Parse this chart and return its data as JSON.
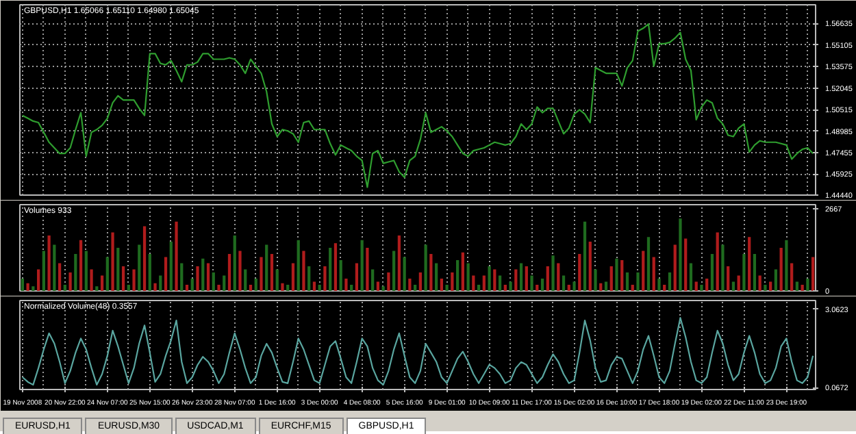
{
  "chart_data": [
    {
      "type": "line",
      "title": "GBPUSD,H1  1.65066 1.65110 1.64980 1.65045",
      "grid": true,
      "categories": [
        null,
        null,
        null,
        null,
        null,
        null,
        null,
        null,
        null,
        null,
        null,
        null,
        null,
        null,
        null,
        null,
        null,
        null,
        null,
        null,
        null,
        null,
        null,
        null,
        null,
        null,
        null,
        null,
        null,
        null,
        null,
        null,
        null,
        null,
        null,
        null,
        null,
        null,
        null,
        null,
        null,
        null,
        null,
        null,
        null,
        null,
        null,
        null,
        null,
        null,
        null,
        null,
        null,
        null,
        null,
        null,
        null,
        null,
        null,
        null,
        null,
        null,
        null,
        null,
        null,
        null,
        null,
        null,
        null,
        null,
        null,
        null,
        null,
        null,
        null,
        null,
        null,
        null,
        null,
        null,
        null,
        null,
        null,
        null,
        null,
        null,
        null,
        null,
        null,
        null,
        null,
        null,
        null,
        null,
        null,
        null,
        null,
        null,
        null,
        null,
        null,
        null,
        null,
        null,
        null,
        null,
        null,
        null,
        null,
        null,
        null,
        null,
        null,
        null,
        null,
        null,
        null,
        null,
        null,
        null,
        null,
        null,
        null,
        null,
        null,
        null,
        null,
        null,
        null,
        null,
        null,
        null,
        null,
        null,
        null,
        null,
        null,
        null,
        null,
        null,
        null,
        null,
        null,
        null,
        null,
        null,
        null,
        null,
        null,
        null
      ],
      "ylim": [
        1.4444,
        1.5797
      ],
      "yticks": [
        {
          "value": 1.4444,
          "label": "1.44440"
        },
        1.45925,
        1.47455,
        1.48985,
        1.50515,
        1.52045,
        1.53575,
        1.55105,
        1.56635
      ],
      "series": [
        {
          "color": "#2f9e2f",
          "values": [
            1.501,
            1.499,
            1.497,
            1.496,
            1.489,
            1.482,
            1.478,
            1.474,
            1.474,
            1.478,
            1.491,
            1.503,
            1.472,
            1.489,
            1.491,
            1.494,
            1.499,
            1.51,
            1.515,
            1.512,
            1.512,
            1.512,
            1.506,
            1.501,
            1.545,
            1.545,
            1.538,
            1.537,
            1.54,
            1.533,
            1.525,
            1.537,
            1.537,
            1.539,
            1.545,
            1.545,
            1.541,
            1.541,
            1.541,
            1.542,
            1.541,
            1.537,
            1.531,
            1.541,
            1.536,
            1.531,
            1.518,
            1.495,
            1.486,
            1.491,
            1.49,
            1.488,
            1.482,
            1.496,
            1.497,
            1.491,
            1.491,
            1.491,
            1.481,
            1.473,
            1.48,
            1.478,
            1.476,
            1.472,
            1.469,
            1.45,
            1.474,
            1.476,
            1.467,
            1.468,
            1.469,
            1.461,
            1.457,
            1.469,
            1.472,
            1.484,
            1.503,
            1.489,
            1.491,
            1.493,
            1.49,
            1.486,
            1.48,
            1.474,
            1.472,
            1.476,
            1.477,
            1.478,
            1.48,
            1.482,
            1.481,
            1.48,
            1.481,
            1.486,
            1.495,
            1.491,
            1.495,
            1.507,
            1.503,
            1.506,
            1.506,
            1.497,
            1.488,
            1.492,
            1.502,
            1.505,
            1.502,
            1.496,
            1.535,
            1.533,
            1.531,
            1.531,
            1.531,
            1.522,
            1.535,
            1.54,
            1.561,
            1.563,
            1.566,
            1.536,
            1.552,
            1.552,
            1.553,
            1.556,
            1.56,
            1.541,
            1.533,
            1.498,
            1.507,
            1.512,
            1.51,
            1.499,
            1.495,
            1.487,
            1.486,
            1.492,
            1.495,
            1.475,
            1.48,
            1.483,
            1.482,
            1.482,
            1.482,
            1.481,
            1.48,
            1.47,
            1.474,
            1.477,
            1.478,
            1.474
          ]
        }
      ]
    },
    {
      "type": "bar",
      "title": "Volumes 933",
      "grid": "x",
      "categories": [
        null,
        null,
        null,
        null,
        null,
        null,
        null,
        null,
        null,
        null,
        null,
        null,
        null,
        null,
        null,
        null,
        null,
        null,
        null,
        null,
        null,
        null,
        null,
        null,
        null,
        null,
        null,
        null,
        null,
        null,
        null,
        null,
        null,
        null,
        null,
        null,
        null,
        null,
        null,
        null,
        null,
        null,
        null,
        null,
        null,
        null,
        null,
        null,
        null,
        null,
        null,
        null,
        null,
        null,
        null,
        null,
        null,
        null,
        null,
        null,
        null,
        null,
        null,
        null,
        null,
        null,
        null,
        null,
        null,
        null,
        null,
        null,
        null,
        null,
        null,
        null,
        null,
        null,
        null,
        null,
        null,
        null,
        null,
        null,
        null,
        null,
        null,
        null,
        null,
        null,
        null,
        null,
        null,
        null,
        null,
        null,
        null,
        null,
        null,
        null,
        null,
        null,
        null,
        null,
        null,
        null,
        null,
        null,
        null,
        null,
        null,
        null,
        null,
        null,
        null,
        null,
        null,
        null,
        null,
        null,
        null,
        null,
        null,
        null,
        null,
        null,
        null,
        null,
        null,
        null,
        null,
        null,
        null,
        null,
        null,
        null,
        null,
        null,
        null,
        null,
        null,
        null,
        null,
        null,
        null,
        null,
        null,
        null,
        null,
        null
      ],
      "ylim": [
        0,
        2800
      ],
      "yticks": [
        0,
        2667
      ],
      "values": [
        400,
        250,
        150,
        700,
        1300,
        1800,
        1500,
        900,
        200,
        600,
        1200,
        1650,
        1300,
        700,
        150,
        500,
        1100,
        1900,
        1400,
        800,
        200,
        700,
        1500,
        2100,
        1200,
        250,
        500,
        1100,
        1600,
        2250,
        900,
        200,
        400,
        800,
        1050,
        900,
        600,
        200,
        500,
        1200,
        1800,
        1300,
        700,
        200,
        400,
        1100,
        1500,
        1200,
        700,
        250,
        200,
        900,
        1650,
        1300,
        800,
        300,
        200,
        800,
        1400,
        1550,
        1000,
        400,
        200,
        900,
        1650,
        1400,
        700,
        300,
        150,
        600,
        1300,
        1800,
        1100,
        400,
        200,
        600,
        1500,
        1200,
        900,
        400,
        200,
        600,
        1000,
        1250,
        900,
        500,
        200,
        500,
        800,
        700,
        500,
        200,
        300,
        700,
        900,
        800,
        500,
        200,
        400,
        800,
        1150,
        900,
        500,
        200,
        300,
        1200,
        2250,
        1600,
        700,
        250,
        300,
        800,
        1050,
        1000,
        600,
        200,
        600,
        1300,
        1750,
        1100,
        400,
        200,
        600,
        1500,
        2350,
        1700,
        900,
        300,
        200,
        400,
        1200,
        1900,
        1500,
        800,
        300,
        500,
        1200,
        1750,
        1200,
        500,
        200,
        300,
        700,
        1400,
        1650,
        900,
        300,
        200,
        400,
        1100
      ],
      "colors": [
        "#1f6b1f",
        "#b01c1c",
        "#1f6b1f",
        "#b01c1c",
        "#1f6b1f",
        "#b01c1c",
        "#1f6b1f",
        "#b01c1c",
        "#1f6b1f",
        "#b01c1c",
        "#1f6b1f",
        "#b01c1c",
        "#1f6b1f",
        "#b01c1c",
        "#1f6b1f",
        "#b01c1c",
        "#1f6b1f",
        "#b01c1c",
        "#1f6b1f",
        "#b01c1c",
        "#1f6b1f",
        "#b01c1c",
        "#1f6b1f",
        "#b01c1c",
        "#1f6b1f",
        "#b01c1c",
        "#1f6b1f",
        "#b01c1c",
        "#1f6b1f",
        "#b01c1c",
        "#1f6b1f",
        "#b01c1c",
        "#1f6b1f",
        "#b01c1c",
        "#1f6b1f",
        "#b01c1c",
        "#1f6b1f",
        "#b01c1c",
        "#1f6b1f",
        "#b01c1c",
        "#1f6b1f",
        "#b01c1c",
        "#1f6b1f",
        "#b01c1c",
        "#1f6b1f",
        "#b01c1c",
        "#1f6b1f",
        "#b01c1c",
        "#1f6b1f",
        "#b01c1c",
        "#1f6b1f",
        "#b01c1c",
        "#1f6b1f",
        "#b01c1c",
        "#1f6b1f",
        "#b01c1c",
        "#1f6b1f",
        "#b01c1c",
        "#1f6b1f",
        "#b01c1c",
        "#1f6b1f",
        "#b01c1c",
        "#1f6b1f",
        "#b01c1c",
        "#1f6b1f",
        "#b01c1c",
        "#1f6b1f",
        "#b01c1c",
        "#1f6b1f",
        "#b01c1c",
        "#1f6b1f",
        "#b01c1c",
        "#1f6b1f",
        "#b01c1c",
        "#1f6b1f",
        "#b01c1c",
        "#1f6b1f",
        "#b01c1c",
        "#1f6b1f",
        "#b01c1c",
        "#1f6b1f",
        "#b01c1c",
        "#1f6b1f",
        "#b01c1c",
        "#1f6b1f",
        "#b01c1c",
        "#1f6b1f",
        "#b01c1c",
        "#1f6b1f",
        "#b01c1c",
        "#1f6b1f",
        "#b01c1c",
        "#1f6b1f",
        "#b01c1c",
        "#1f6b1f",
        "#b01c1c",
        "#1f6b1f",
        "#b01c1c",
        "#1f6b1f",
        "#b01c1c",
        "#1f6b1f",
        "#b01c1c",
        "#1f6b1f",
        "#b01c1c",
        "#1f6b1f",
        "#b01c1c",
        "#1f6b1f",
        "#b01c1c",
        "#1f6b1f",
        "#b01c1c",
        "#1f6b1f",
        "#b01c1c",
        "#1f6b1f",
        "#b01c1c",
        "#1f6b1f",
        "#b01c1c",
        "#1f6b1f",
        "#b01c1c",
        "#1f6b1f",
        "#b01c1c",
        "#1f6b1f",
        "#b01c1c",
        "#1f6b1f",
        "#b01c1c",
        "#1f6b1f",
        "#b01c1c",
        "#1f6b1f",
        "#b01c1c",
        "#1f6b1f",
        "#b01c1c",
        "#1f6b1f",
        "#b01c1c",
        "#1f6b1f",
        "#b01c1c",
        "#1f6b1f",
        "#b01c1c",
        "#1f6b1f",
        "#b01c1c",
        "#1f6b1f",
        "#b01c1c",
        "#1f6b1f",
        "#b01c1c",
        "#1f6b1f",
        "#b01c1c",
        "#1f6b1f",
        "#b01c1c",
        "#1f6b1f",
        "#b01c1c",
        "#1f6b1f",
        "#b01c1c"
      ]
    },
    {
      "type": "line",
      "title": "Normalized Volume(48) 0.3557",
      "grid": "x",
      "categories": [
        "19 Nov 2008",
        null,
        null,
        null,
        null,
        null,
        null,
        null,
        "20 Nov 22:00",
        null,
        null,
        null,
        null,
        null,
        null,
        null,
        "24 Nov 07:00",
        null,
        null,
        null,
        null,
        null,
        null,
        null,
        "25 Nov 15:00",
        null,
        null,
        null,
        null,
        null,
        null,
        null,
        "26 Nov 23:00",
        null,
        null,
        null,
        null,
        null,
        null,
        null,
        "28 Nov 07:00",
        null,
        null,
        null,
        null,
        null,
        null,
        null,
        "1 Dec 16:00",
        null,
        null,
        null,
        null,
        null,
        null,
        null,
        "3 Dec 00:00",
        null,
        null,
        null,
        null,
        null,
        null,
        null,
        "4 Dec 08:00",
        null,
        null,
        null,
        null,
        null,
        null,
        null,
        "5 Dec 16:00",
        null,
        null,
        null,
        null,
        null,
        null,
        null,
        "9 Dec 01:00",
        null,
        null,
        null,
        null,
        null,
        null,
        null,
        "10 Dec 09:00",
        null,
        null,
        null,
        null,
        null,
        null,
        null,
        "11 Dec 17:00",
        null,
        null,
        null,
        null,
        null,
        null,
        null,
        "15 Dec 02:00",
        null,
        null,
        null,
        null,
        null,
        null,
        null,
        "16 Dec 10:00",
        null,
        null,
        null,
        null,
        null,
        null,
        null,
        "17 Dec 18:00",
        null,
        null,
        null,
        null,
        null,
        null,
        null,
        "19 Dec 02:00",
        null,
        null,
        null,
        null,
        null,
        null,
        null,
        "22 Dec 11:00",
        null,
        null,
        null,
        null,
        null,
        null,
        null,
        "23 Dec 19:00",
        null,
        null,
        null,
        null,
        null
      ],
      "ylim": [
        0,
        3.4
      ],
      "yticks": [
        0.0672,
        3.0623
      ],
      "annotations": [
        "EURUSD,H1",
        "EURUSD,M30",
        "USDCAD,M1",
        "EURCHF,M15",
        "GBPUSD,H1"
      ],
      "series": [
        {
          "color": "#5aa6a0",
          "values": [
            0.47,
            0.29,
            0.18,
            0.82,
            1.53,
            2.15,
            1.76,
            1.06,
            0.24,
            0.71,
            1.41,
            1.95,
            1.53,
            0.82,
            0.18,
            0.59,
            1.29,
            2.25,
            1.65,
            0.94,
            0.24,
            0.82,
            1.76,
            2.45,
            1.41,
            0.29,
            0.59,
            1.29,
            1.88,
            2.64,
            1.06,
            0.24,
            0.47,
            0.94,
            1.25,
            1.06,
            0.71,
            0.24,
            0.59,
            1.41,
            2.15,
            1.53,
            0.82,
            0.24,
            0.47,
            1.29,
            1.75,
            1.41,
            0.82,
            0.29,
            0.24,
            1.06,
            1.95,
            1.53,
            0.94,
            0.35,
            0.24,
            0.94,
            1.65,
            1.85,
            1.18,
            0.47,
            0.24,
            1.06,
            1.95,
            1.65,
            0.82,
            0.35,
            0.18,
            0.71,
            1.53,
            2.15,
            1.29,
            0.47,
            0.24,
            0.71,
            1.75,
            1.41,
            1.06,
            0.47,
            0.24,
            0.71,
            1.18,
            1.45,
            1.06,
            0.59,
            0.24,
            0.59,
            0.95,
            0.82,
            0.59,
            0.24,
            0.35,
            0.82,
            1.05,
            0.94,
            0.59,
            0.24,
            0.47,
            0.94,
            1.35,
            1.06,
            0.59,
            0.24,
            0.35,
            1.41,
            2.64,
            1.88,
            0.82,
            0.29,
            0.35,
            0.94,
            1.25,
            1.18,
            0.71,
            0.24,
            0.71,
            1.53,
            2.05,
            1.29,
            0.47,
            0.24,
            0.71,
            1.76,
            2.74,
            2.0,
            1.06,
            0.35,
            0.24,
            0.47,
            1.41,
            2.25,
            1.76,
            0.94,
            0.35,
            0.59,
            1.41,
            2.05,
            1.41,
            0.59,
            0.24,
            0.35,
            0.82,
            1.65,
            1.95,
            1.06,
            0.35,
            0.24,
            0.47,
            1.29
          ]
        }
      ]
    }
  ]
}
